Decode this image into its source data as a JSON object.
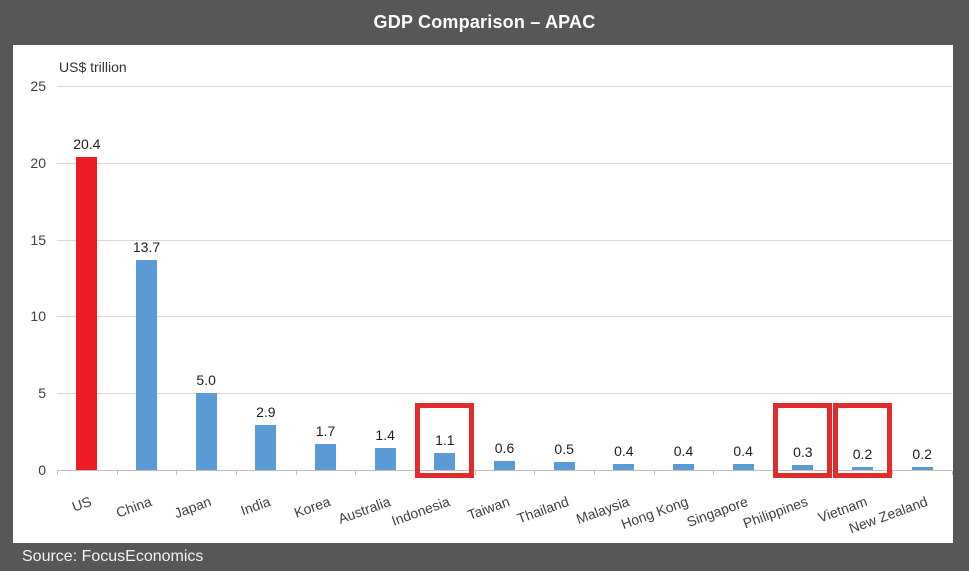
{
  "title": {
    "text": "GDP Comparison – APAC"
  },
  "source": {
    "text": "Source: FocusEconomics"
  },
  "colors": {
    "frame": "#575757",
    "panel": "#ffffff",
    "bar_blue": "#5B9BD5",
    "bar_red": "#ED1C24",
    "highlight_red": "#E02C2C",
    "gridline": "#D9D9D9",
    "axis": "#BFBFBF",
    "title_text": "#ffffff",
    "source_text": "#f2f2f2"
  },
  "chart_data": {
    "type": "bar",
    "title": "GDP Comparison – APAC",
    "unit_label": "US$ trillion",
    "xlabel": "",
    "ylabel": "US$ trillion",
    "categories": [
      "US",
      "China",
      "Japan",
      "India",
      "Korea",
      "Australia",
      "Indonesia",
      "Taiwan",
      "Thailand",
      "Malaysia",
      "Hong Kong",
      "Singapore",
      "Philippines",
      "Vietnam",
      "New Zealand"
    ],
    "values": [
      20.4,
      13.7,
      5.0,
      2.9,
      1.7,
      1.4,
      1.1,
      0.6,
      0.5,
      0.4,
      0.4,
      0.4,
      0.3,
      0.2,
      0.2
    ],
    "value_labels": [
      "20.4",
      "13.7",
      "5.0",
      "2.9",
      "1.7",
      "1.4",
      "1.1",
      "0.6",
      "0.5",
      "0.4",
      "0.4",
      "0.4",
      "0.3",
      "0.2",
      "0.2"
    ],
    "red_categories": [
      "US"
    ],
    "highlighted_categories": [
      "Indonesia",
      "Philippines",
      "Vietnam"
    ],
    "y_ticks": [
      0,
      5,
      10,
      15,
      20,
      25
    ],
    "ylim": [
      0,
      25
    ],
    "grid": true,
    "legend": "none",
    "x_label_rotation_deg": -20
  }
}
